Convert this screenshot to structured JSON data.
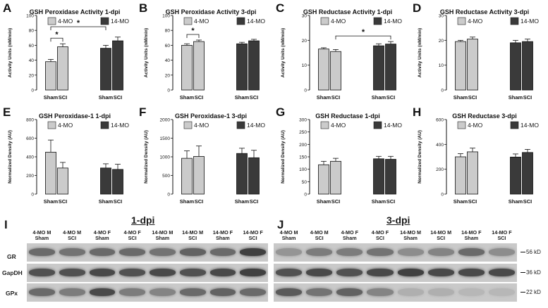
{
  "colors": {
    "young": "#cbcbcb",
    "old": "#3a3a3a"
  },
  "legend": {
    "young": "4-MO",
    "old": "14-MO"
  },
  "charts": [
    {
      "letter": "A",
      "title": "GSH Peroxidase Activity 1-dpi",
      "ylabel": "Activity Units (nM/min)",
      "yticks": [
        "0",
        "20",
        "40",
        "60",
        "80",
        "100"
      ],
      "xlabels": [
        "Sham",
        "SCI",
        "Sham",
        "SCI"
      ],
      "sig": [
        "*",
        "*"
      ]
    },
    {
      "letter": "B",
      "title": "GSH Peroxidase Activity 3-dpi",
      "ylabel": "Activity Units (nM/min)",
      "yticks": [
        "0",
        "20",
        "40",
        "60",
        "80",
        "100"
      ],
      "xlabels": [
        "Sham",
        "SCI",
        "Sham",
        "SCI"
      ],
      "sig": [
        "*"
      ]
    },
    {
      "letter": "C",
      "title": "GSH Reductase Activity 1-dpi",
      "ylabel": "Activity Units (nM/min)",
      "yticks": [
        "0",
        "10",
        "20",
        "30"
      ],
      "xlabels": [
        "Sham",
        "SCI",
        "Sham",
        "SCI"
      ],
      "sig": [
        "*"
      ]
    },
    {
      "letter": "D",
      "title": "GSH Reductase Activity 3-dpi",
      "ylabel": "Activity Units (nM/min)",
      "yticks": [
        "0",
        "10",
        "20",
        "30"
      ],
      "xlabels": [
        "Sham",
        "SCI",
        "Sham",
        "SCI"
      ],
      "sig": []
    },
    {
      "letter": "E",
      "title": "GSH Peroxidase-1 1-dpi",
      "ylabel": "Normalized Density (AU)",
      "yticks": [
        "0",
        "200",
        "400",
        "600",
        "800"
      ],
      "xlabels": [
        "Sham",
        "SCI",
        "Sham",
        "SCI"
      ],
      "sig": []
    },
    {
      "letter": "F",
      "title": "GSH Peroxidase-1 3-dpi",
      "ylabel": "Normalized Density (AU)",
      "yticks": [
        "0",
        "500",
        "1000",
        "1500",
        "2000"
      ],
      "xlabels": [
        "Sham",
        "SCI",
        "Sham",
        "SCI"
      ],
      "sig": []
    },
    {
      "letter": "G",
      "title": "GSH Reductase 1-dpi",
      "ylabel": "Normalized Density (AU)",
      "yticks": [
        "0",
        "50",
        "100",
        "150",
        "200",
        "250",
        "300"
      ],
      "xlabels": [
        "Sham",
        "SCI",
        "Sham",
        "SCI"
      ],
      "sig": []
    },
    {
      "letter": "H",
      "title": "GSH Reductase 3-dpi",
      "ylabel": "Normalized Density (AU)",
      "yticks": [
        "0",
        "200",
        "400",
        "600"
      ],
      "xlabels": [
        "Sham",
        "SCI",
        "Sham",
        "SCI"
      ],
      "sig": []
    }
  ],
  "chart_data": [
    {
      "type": "bar",
      "title": "GSH Peroxidase Activity 1-dpi",
      "ylabel": "Activity Units (nM/min)",
      "ylim": [
        0,
        100
      ],
      "categories": [
        "Sham",
        "SCI",
        "Sham",
        "SCI"
      ],
      "group": [
        "4-MO",
        "4-MO",
        "14-MO",
        "14-MO"
      ],
      "values": [
        38,
        58,
        56,
        66
      ],
      "errors": [
        3,
        4,
        4,
        5
      ]
    },
    {
      "type": "bar",
      "title": "GSH Peroxidase Activity 3-dpi",
      "ylabel": "Activity Units (nM/min)",
      "ylim": [
        0,
        100
      ],
      "categories": [
        "Sham",
        "SCI",
        "Sham",
        "SCI"
      ],
      "group": [
        "4-MO",
        "4-MO",
        "14-MO",
        "14-MO"
      ],
      "values": [
        60,
        65,
        62,
        66
      ],
      "errors": [
        2,
        2,
        2,
        2
      ]
    },
    {
      "type": "bar",
      "title": "GSH Reductase Activity 1-dpi",
      "ylabel": "Activity Units (nM/min)",
      "ylim": [
        0,
        30
      ],
      "categories": [
        "Sham",
        "SCI",
        "Sham",
        "SCI"
      ],
      "group": [
        "4-MO",
        "4-MO",
        "14-MO",
        "14-MO"
      ],
      "values": [
        16.5,
        15.5,
        17.8,
        18.5
      ],
      "errors": [
        0.5,
        0.8,
        0.8,
        1.0
      ]
    },
    {
      "type": "bar",
      "title": "GSH Reductase Activity 3-dpi",
      "ylabel": "Activity Units (nM/min)",
      "ylim": [
        0,
        30
      ],
      "categories": [
        "Sham",
        "SCI",
        "Sham",
        "SCI"
      ],
      "group": [
        "4-MO",
        "4-MO",
        "14-MO",
        "14-MO"
      ],
      "values": [
        19.5,
        20.5,
        19.0,
        19.5
      ],
      "errors": [
        0.5,
        0.8,
        1.0,
        1.0
      ]
    },
    {
      "type": "bar",
      "title": "GSH Peroxidase-1 1-dpi",
      "ylabel": "Normalized Density (AU)",
      "ylim": [
        0,
        800
      ],
      "categories": [
        "Sham",
        "SCI",
        "Sham",
        "SCI"
      ],
      "group": [
        "4-MO",
        "4-MO",
        "14-MO",
        "14-MO"
      ],
      "values": [
        450,
        280,
        280,
        265
      ],
      "errors": [
        130,
        60,
        45,
        55
      ]
    },
    {
      "type": "bar",
      "title": "GSH Peroxidase-1 3-dpi",
      "ylabel": "Normalized Density (AU)",
      "ylim": [
        0,
        2000
      ],
      "categories": [
        "Sham",
        "SCI",
        "Sham",
        "SCI"
      ],
      "group": [
        "4-MO",
        "4-MO",
        "14-MO",
        "14-MO"
      ],
      "values": [
        960,
        1010,
        1090,
        975
      ],
      "errors": [
        200,
        280,
        140,
        200
      ]
    },
    {
      "type": "bar",
      "title": "GSH Reductase 1-dpi",
      "ylabel": "Normalized Density (AU)",
      "ylim": [
        0,
        300
      ],
      "categories": [
        "Sham",
        "SCI",
        "Sham",
        "SCI"
      ],
      "group": [
        "4-MO",
        "4-MO",
        "14-MO",
        "14-MO"
      ],
      "values": [
        118,
        132,
        142,
        140
      ],
      "errors": [
        14,
        12,
        10,
        12
      ]
    },
    {
      "type": "bar",
      "title": "GSH Reductase 3-dpi",
      "ylabel": "Normalized Density (AU)",
      "ylim": [
        0,
        600
      ],
      "categories": [
        "Sham",
        "SCI",
        "Sham",
        "SCI"
      ],
      "group": [
        "4-MO",
        "4-MO",
        "14-MO",
        "14-MO"
      ],
      "values": [
        300,
        340,
        298,
        335
      ],
      "errors": [
        25,
        30,
        25,
        25
      ]
    }
  ],
  "blots": {
    "left": {
      "letter": "I",
      "title": "1-dpi",
      "lanes": [
        "4-MO M Sham",
        "4-MO M SCI",
        "4-MO F Sham",
        "4-MO F SCI",
        "14-MO M Sham",
        "14-MO M SCI",
        "14-MO F Sham",
        "14-MO F SCI"
      ],
      "rows": [
        "GR",
        "GapDH",
        "GPx"
      ]
    },
    "right": {
      "letter": "J",
      "title": "3-dpi",
      "lanes": [
        "4-MO M Sham",
        "4-MO M SCI",
        "4-MO F Sham",
        "4-MO F SCI",
        "14-MO M Sham",
        "14-MO M SCI",
        "14-MO F Sham",
        "14-MO F SCI"
      ],
      "markers": [
        "56 kD",
        "36 kD",
        "22 kD"
      ]
    },
    "intensity": {
      "left": [
        [
          0.55,
          0.5,
          0.55,
          0.55,
          0.5,
          0.6,
          0.55,
          0.8
        ],
        [
          0.7,
          0.7,
          0.75,
          0.7,
          0.75,
          0.7,
          0.75,
          0.8
        ],
        [
          0.55,
          0.45,
          0.75,
          0.45,
          0.4,
          0.55,
          0.6,
          0.55
        ]
      ],
      "right": [
        [
          0.3,
          0.45,
          0.45,
          0.5,
          0.35,
          0.4,
          0.55,
          0.35
        ],
        [
          0.7,
          0.75,
          0.7,
          0.75,
          0.8,
          0.75,
          0.75,
          0.75
        ],
        [
          0.65,
          0.5,
          0.6,
          0.4,
          0.15,
          0.15,
          0.1,
          0.1
        ]
      ]
    }
  }
}
